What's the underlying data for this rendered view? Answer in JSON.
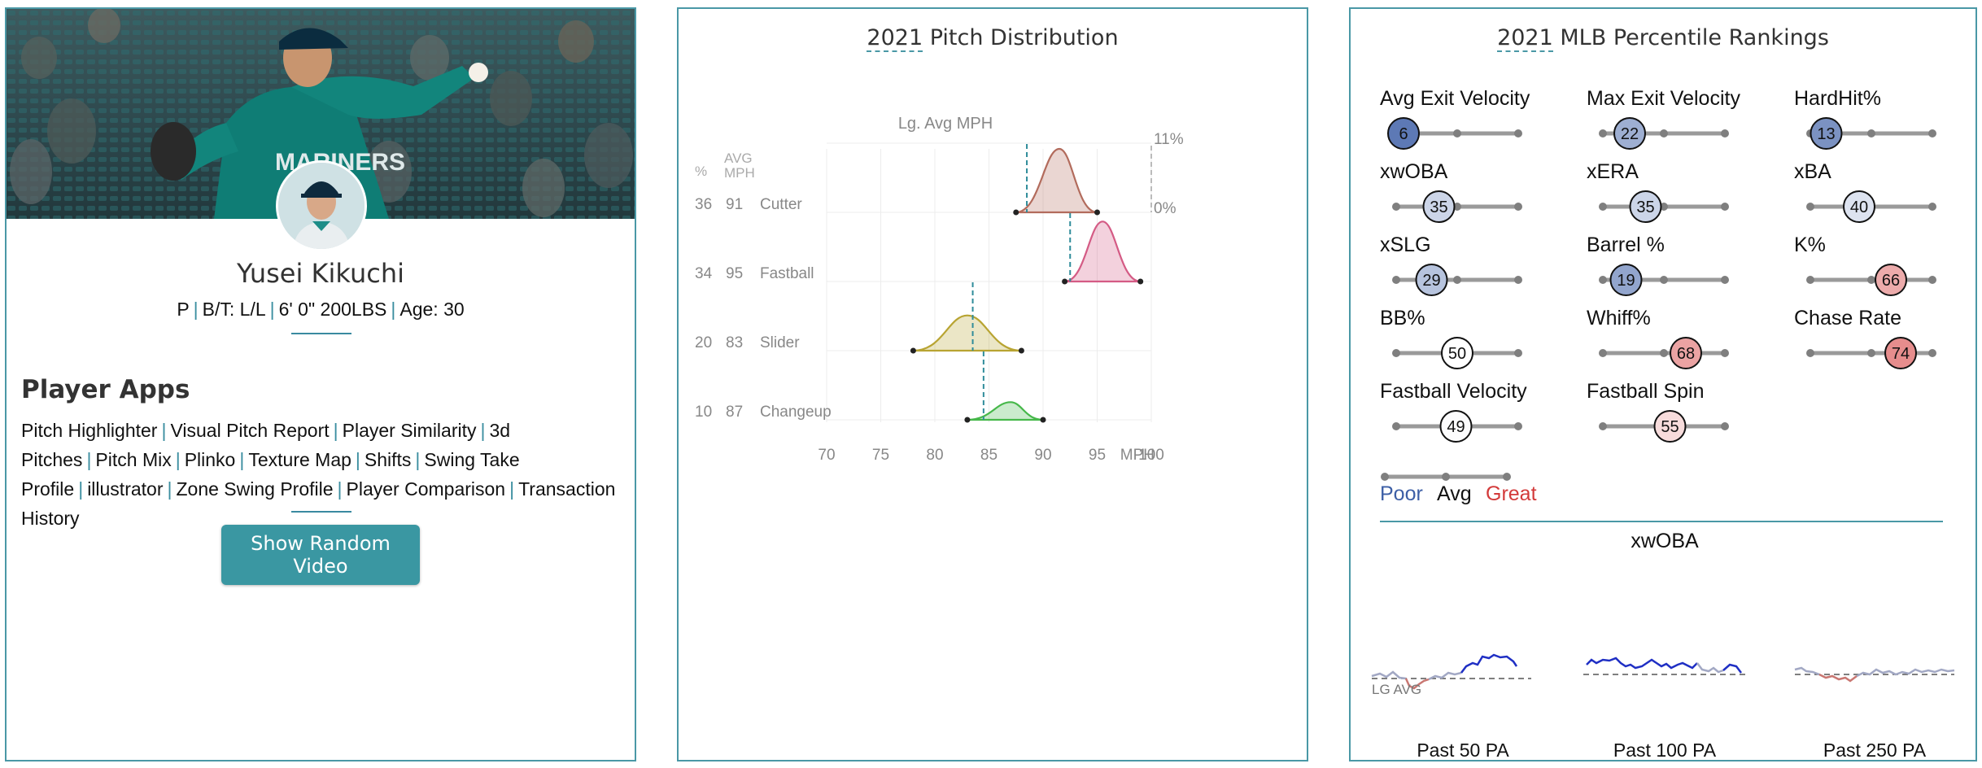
{
  "player": {
    "name": "Yusei Kikuchi",
    "position": "P",
    "bats_throws": "B/T: L/L",
    "height_weight": "6' 0\" 200LBS",
    "age": "Age: 30",
    "jersey_text": "MARINERS"
  },
  "player_apps": {
    "title": "Player Apps",
    "links": [
      "Pitch Highlighter",
      "Visual Pitch Report",
      "Player Similarity",
      "3d Pitches",
      "Pitch Mix",
      "Plinko",
      "Texture Map",
      "Shifts",
      "Swing Take Profile",
      "illustrator",
      "Zone Swing Profile",
      "Player Comparison",
      "Transaction History"
    ],
    "video_button": "Show Random Video"
  },
  "pitch_distribution": {
    "title_year": "2021",
    "title_rest": " Pitch Distribution",
    "header_pct": "%",
    "header_avg": "AVG",
    "header_mph": "MPH",
    "lg_avg_label": "Lg. Avg MPH",
    "density_max_label": "11%",
    "density_zero_label": "0%",
    "x_unit": "MPH",
    "x_ticks": [
      70,
      75,
      80,
      85,
      90,
      95,
      100
    ]
  },
  "chart_data": {
    "type": "area",
    "title": "2021 Pitch Distribution",
    "xlabel": "MPH",
    "xlim": [
      70,
      100
    ],
    "series": [
      {
        "name": "Cutter",
        "pct": 36,
        "avg_mph": 91,
        "lg_avg_mph": 88.5,
        "min_mph": 87.5,
        "max_mph": 95,
        "peak_mph": 91.5,
        "color": "#b26b5c"
      },
      {
        "name": "Fastball",
        "pct": 34,
        "avg_mph": 95,
        "lg_avg_mph": 92.5,
        "min_mph": 92,
        "max_mph": 99,
        "peak_mph": 95.5,
        "color": "#d45b85"
      },
      {
        "name": "Slider",
        "pct": 20,
        "avg_mph": 83,
        "lg_avg_mph": 83.5,
        "min_mph": 78,
        "max_mph": 88,
        "peak_mph": 83,
        "color": "#b8a432"
      },
      {
        "name": "Changeup",
        "pct": 10,
        "avg_mph": 87,
        "lg_avg_mph": 84.5,
        "min_mph": 83,
        "max_mph": 90,
        "peak_mph": 87,
        "color": "#46b84a"
      }
    ]
  },
  "percentile_rankings": {
    "title_year": "2021",
    "title_rest": " MLB Percentile Rankings",
    "metrics": [
      {
        "name": "Avg Exit Velocity",
        "value": 6
      },
      {
        "name": "Max Exit Velocity",
        "value": 22
      },
      {
        "name": "HardHit%",
        "value": 13
      },
      {
        "name": "xwOBA",
        "value": 35
      },
      {
        "name": "xERA",
        "value": 35
      },
      {
        "name": "xBA",
        "value": 40
      },
      {
        "name": "xSLG",
        "value": 29
      },
      {
        "name": "Barrel %",
        "value": 19
      },
      {
        "name": "K%",
        "value": 66
      },
      {
        "name": "BB%",
        "value": 50
      },
      {
        "name": "Whiff%",
        "value": 68
      },
      {
        "name": "Chase Rate",
        "value": 74
      },
      {
        "name": "Fastball Velocity",
        "value": 49
      },
      {
        "name": "Fastball Spin",
        "value": 55
      }
    ],
    "legend": {
      "poor": "Poor",
      "avg": "Avg",
      "great": "Great"
    },
    "colors": {
      "poor": "#3d5fa6",
      "avg": "#ffffff",
      "great": "#d33a3a"
    }
  },
  "xwoba": {
    "title": "xwOBA",
    "lg_avg_label": "LG AVG",
    "windows": [
      "Past 50 PA",
      "Past 100 PA",
      "Past 250 PA"
    ]
  }
}
